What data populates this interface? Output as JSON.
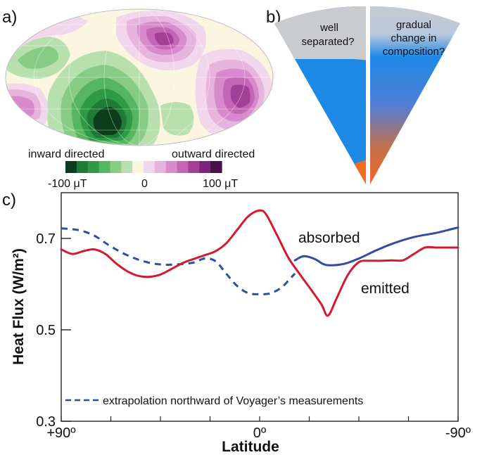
{
  "panels": {
    "a": {
      "label": "a)",
      "inward_label": "inward directed",
      "outward_label": "outward directed",
      "min_label": "-100 μT",
      "mid_label": "0",
      "max_label": "100 μT",
      "colorbar": [
        "#0b3d1b",
        "#1e7a35",
        "#2e9a45",
        "#55b560",
        "#86cc85",
        "#b7e0ae",
        "#fbf5df",
        "#f1d6ec",
        "#e6b4dc",
        "#d88bcc",
        "#c465b6",
        "#a43f98",
        "#7a2479",
        "#4a1048"
      ]
    },
    "b": {
      "label": "b)",
      "left_text_1": "well",
      "left_text_2": "separated?",
      "right_text_1": "gradual",
      "right_text_2": "change in",
      "right_text_3": "composition?",
      "colors": {
        "top": "#c9cbcf",
        "blue": "#1e88e5",
        "orange": "#f26b21"
      }
    },
    "c": {
      "label": "c)"
    }
  },
  "chart_data": {
    "type": "line",
    "xlabel": "Latitude",
    "ylabel": "Heat Flux (W/m²)",
    "xlim": [
      90,
      -90
    ],
    "ylim": [
      0.3,
      0.8
    ],
    "x_ticks": [
      90,
      0,
      -90
    ],
    "x_tick_labels": [
      "+90º",
      "0º",
      "-90º"
    ],
    "y_ticks": [
      0.7,
      0.5,
      0.3
    ],
    "y_tick_labels": [
      "0.7",
      "0.5",
      "0.3"
    ],
    "series": [
      {
        "name": "absorbed",
        "color": "#2f4fa0",
        "style": "solid",
        "x": [
          -16,
          -20,
          -25,
          -30,
          -38,
          -45,
          -52,
          -60,
          -70,
          -80,
          -90
        ],
        "y": [
          0.652,
          0.661,
          0.655,
          0.642,
          0.644,
          0.656,
          0.672,
          0.688,
          0.703,
          0.712,
          0.724
        ]
      },
      {
        "name": "",
        "color": "#2f4fa0",
        "style": "dashed",
        "x": [
          90,
          82,
          75,
          68,
          60,
          52,
          45,
          38,
          30,
          25,
          20,
          15,
          10,
          5,
          0,
          -5,
          -10,
          -14,
          -16
        ],
        "y": [
          0.722,
          0.718,
          0.706,
          0.684,
          0.663,
          0.649,
          0.643,
          0.643,
          0.647,
          0.656,
          0.65,
          0.622,
          0.595,
          0.58,
          0.578,
          0.58,
          0.593,
          0.613,
          0.623
        ]
      },
      {
        "name": "emitted",
        "color": "#d31a30",
        "style": "solid",
        "x": [
          90,
          85,
          80,
          75,
          70,
          65,
          60,
          55,
          50,
          45,
          40,
          35,
          30,
          25,
          20,
          15,
          10,
          5,
          0,
          -3,
          -8,
          -13,
          -18,
          -23,
          -28,
          -31,
          -35,
          -40,
          -45,
          -50,
          -55,
          -60,
          -65,
          -70,
          -75,
          -80,
          -85,
          -90
        ],
        "y": [
          0.676,
          0.666,
          0.672,
          0.676,
          0.666,
          0.645,
          0.628,
          0.618,
          0.616,
          0.621,
          0.633,
          0.646,
          0.655,
          0.663,
          0.672,
          0.69,
          0.72,
          0.749,
          0.761,
          0.752,
          0.706,
          0.658,
          0.623,
          0.59,
          0.556,
          0.531,
          0.57,
          0.62,
          0.648,
          0.651,
          0.651,
          0.652,
          0.652,
          0.666,
          0.68,
          0.68,
          0.68,
          0.68
        ]
      }
    ],
    "annotations": {
      "absorbed_label": "absorbed",
      "emitted_label": "emitted",
      "dashed_legend": "extrapolation northward of Voyager’s measurements"
    }
  }
}
